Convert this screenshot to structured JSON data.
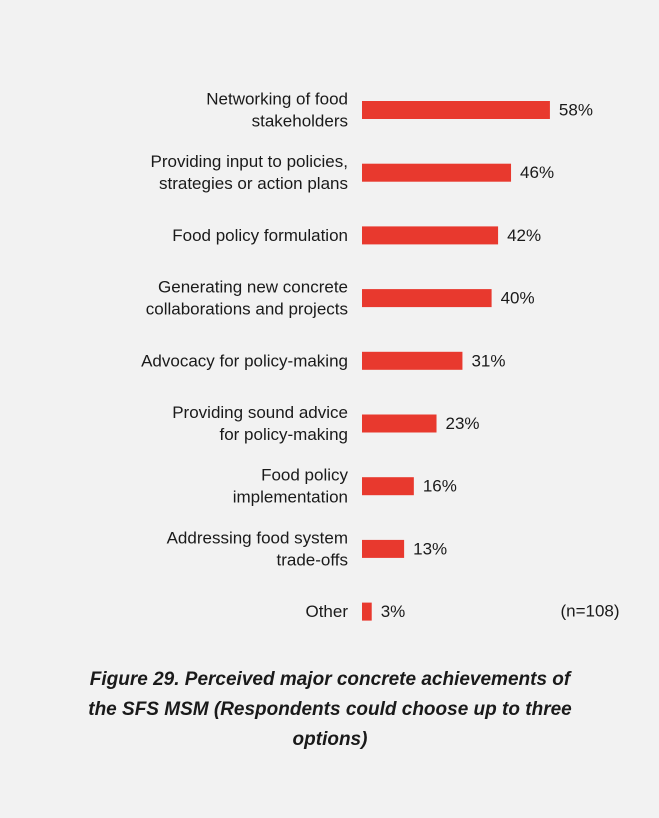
{
  "chart_data": {
    "type": "barh",
    "title": "Figure 29. Perceived major concrete achievements of the SFS MSM (Respondents could choose up to three options)",
    "annotation": "(n=108)",
    "categories": [
      [
        "Networking of food",
        "stakeholders"
      ],
      [
        "Providing input to policies,",
        "strategies or action plans"
      ],
      [
        "Food policy formulation"
      ],
      [
        "Generating new concrete",
        "collaborations and projects"
      ],
      [
        "Advocacy for policy-making"
      ],
      [
        "Providing sound advice",
        "for policy-making"
      ],
      [
        "Food policy",
        "implementation"
      ],
      [
        "Addressing food system",
        "trade-offs"
      ],
      [
        "Other"
      ]
    ],
    "values": [
      58,
      46,
      42,
      40,
      31,
      23,
      16,
      13,
      3
    ],
    "value_labels": [
      "58%",
      "46%",
      "42%",
      "40%",
      "31%",
      "23%",
      "16%",
      "13%",
      "3%"
    ],
    "color": "#e8392e",
    "xlim": [
      0,
      100
    ]
  }
}
